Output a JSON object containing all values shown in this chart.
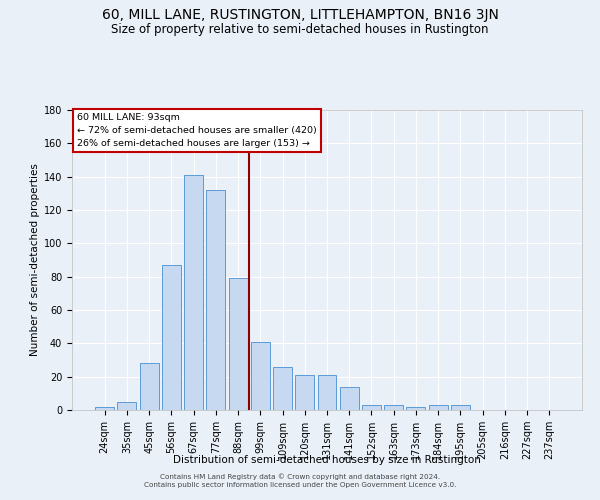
{
  "title": "60, MILL LANE, RUSTINGTON, LITTLEHAMPTON, BN16 3JN",
  "subtitle": "Size of property relative to semi-detached houses in Rustington",
  "xlabel": "Distribution of semi-detached houses by size in Rustington",
  "ylabel": "Number of semi-detached properties",
  "categories": [
    "24sqm",
    "35sqm",
    "45sqm",
    "56sqm",
    "67sqm",
    "77sqm",
    "88sqm",
    "99sqm",
    "109sqm",
    "120sqm",
    "131sqm",
    "141sqm",
    "152sqm",
    "163sqm",
    "173sqm",
    "184sqm",
    "195sqm",
    "205sqm",
    "216sqm",
    "227sqm",
    "237sqm"
  ],
  "values": [
    2,
    5,
    28,
    87,
    141,
    132,
    79,
    41,
    26,
    21,
    21,
    14,
    3,
    3,
    2,
    3,
    3,
    0,
    0,
    0,
    0
  ],
  "bar_color": "#c6d9f0",
  "bar_edge_color": "#5b9bd5",
  "vline_x": 6.5,
  "vline_color": "#8b0000",
  "annotation_text": "60 MILL LANE: 93sqm\n← 72% of semi-detached houses are smaller (420)\n26% of semi-detached houses are larger (153) →",
  "annotation_box_color": "#ffffff",
  "annotation_box_edge": "#c00000",
  "ylim": [
    0,
    180
  ],
  "yticks": [
    0,
    20,
    40,
    60,
    80,
    100,
    120,
    140,
    160,
    180
  ],
  "footer_line1": "Contains HM Land Registry data © Crown copyright and database right 2024.",
  "footer_line2": "Contains public sector information licensed under the Open Government Licence v3.0.",
  "bg_color": "#eaf0f8",
  "grid_color": "#ffffff",
  "title_fontsize": 10,
  "subtitle_fontsize": 8.5,
  "axis_label_fontsize": 7.5,
  "tick_fontsize": 7,
  "annotation_fontsize": 6.8,
  "footer_fontsize": 5.2
}
